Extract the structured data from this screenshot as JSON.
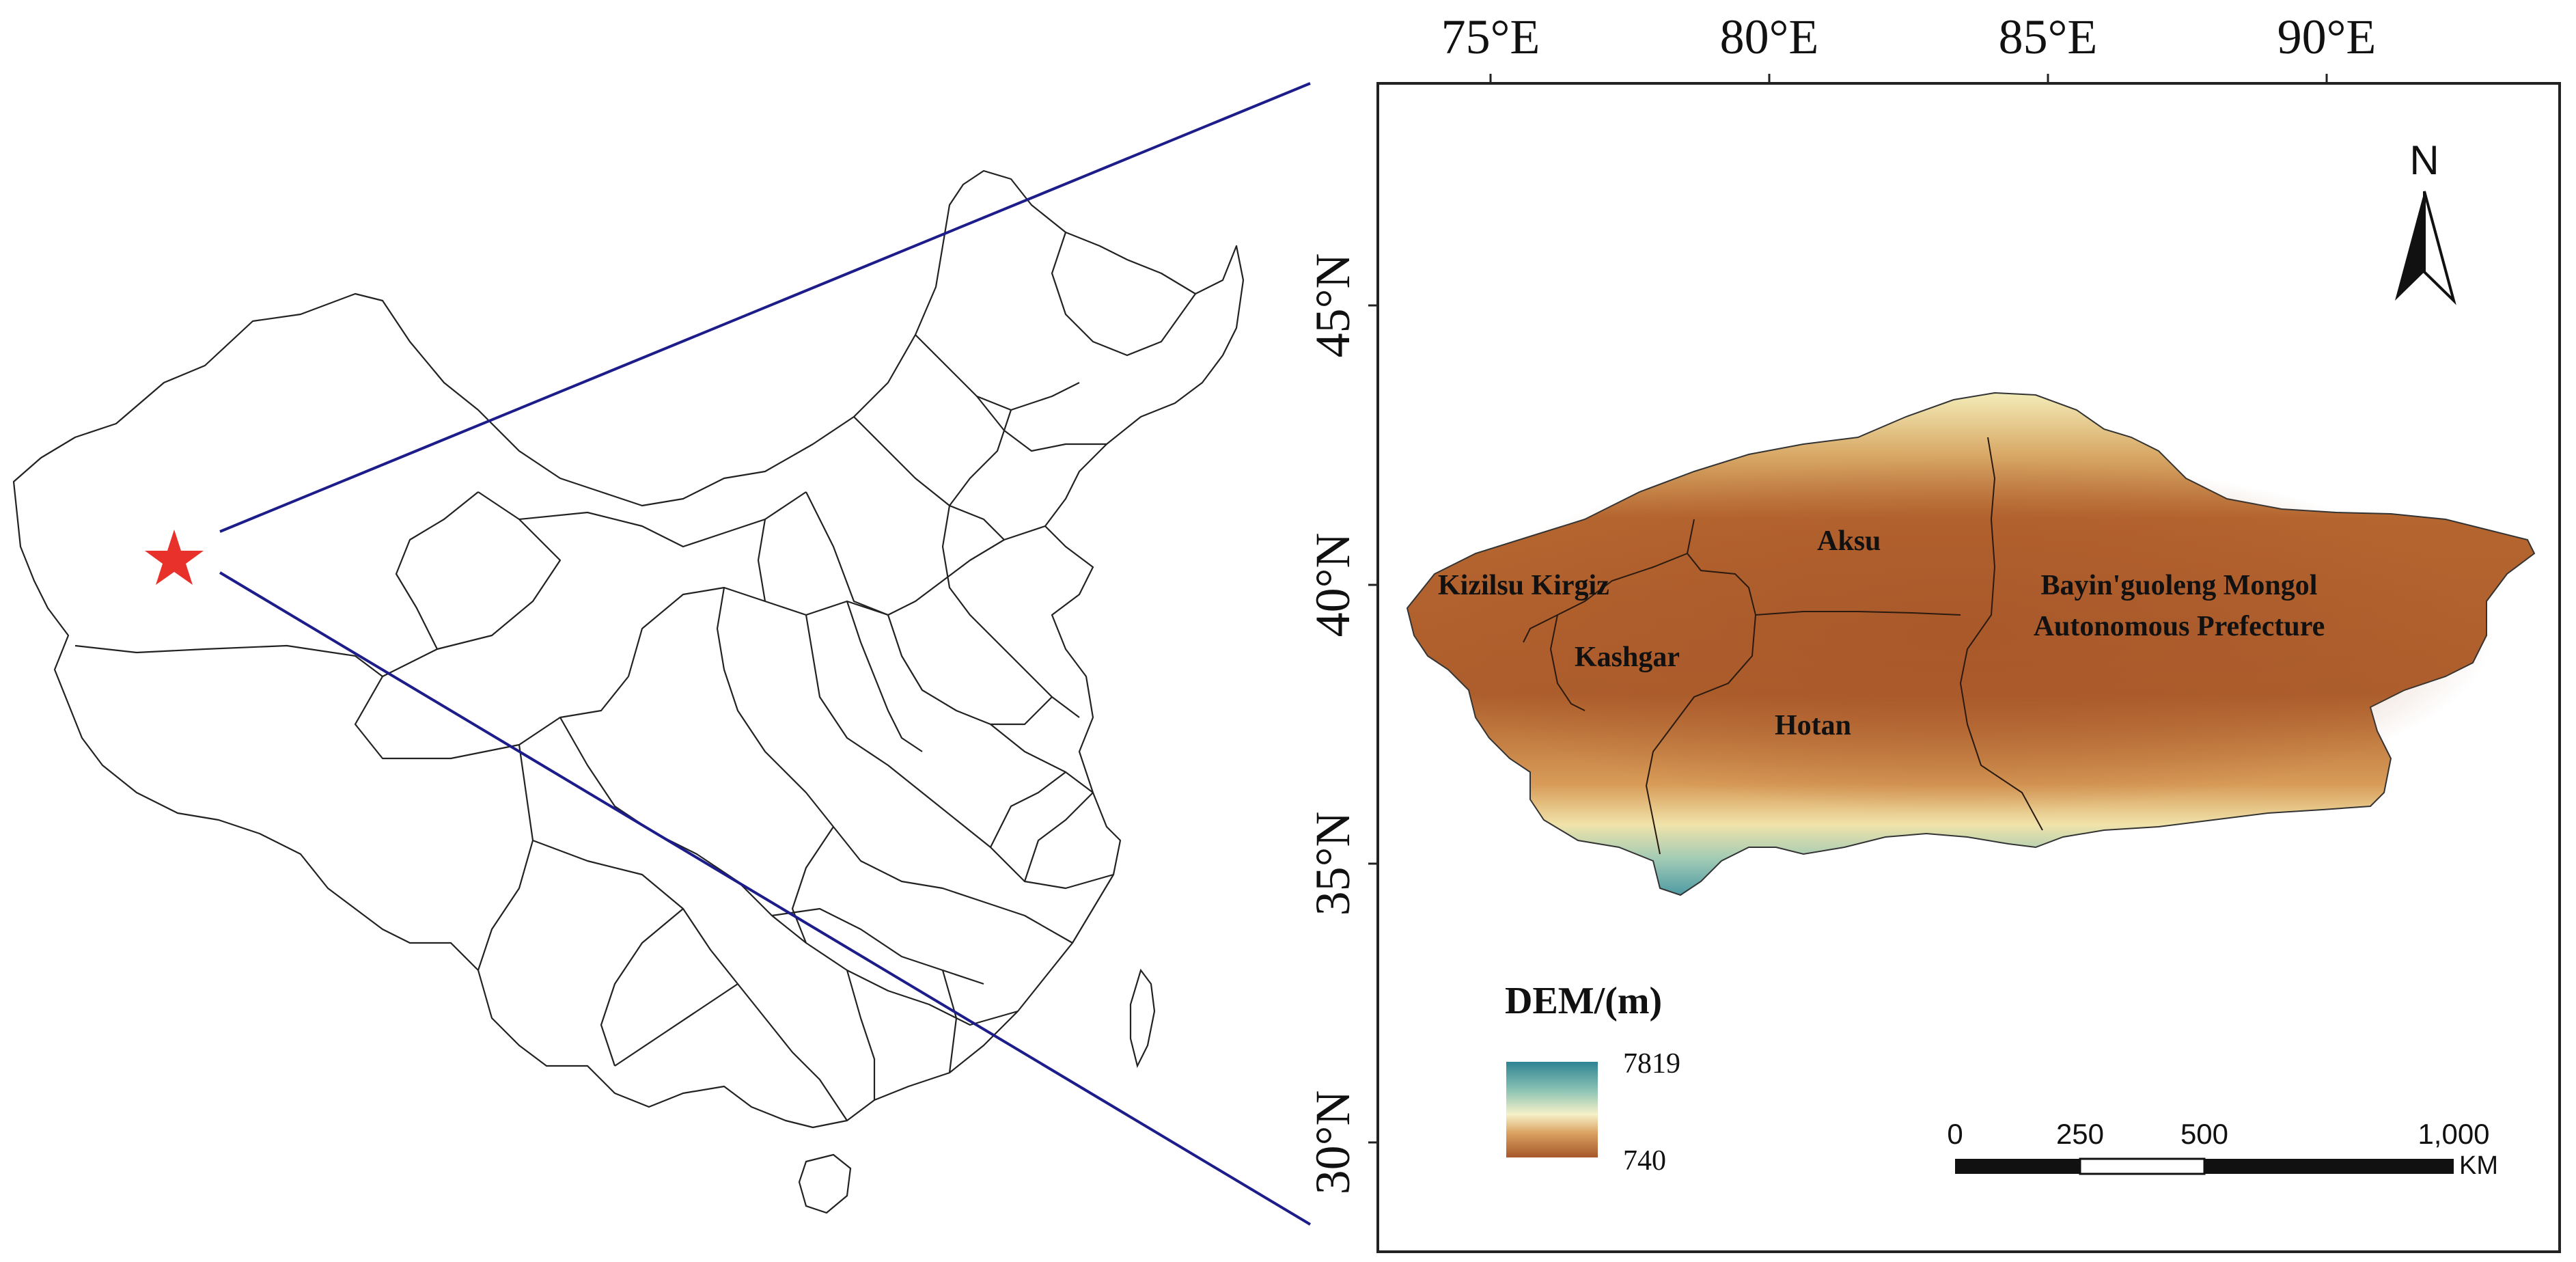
{
  "overview_map": {
    "marker_color": "#e8312a",
    "boundary_color": "#222222",
    "callout_line_color": "#1c1c8a"
  },
  "detail_map": {
    "lon_labels": [
      "75°E",
      "80°E",
      "85°E",
      "90°E"
    ],
    "lat_labels": [
      "45°N",
      "40°N",
      "35°N",
      "30°N"
    ],
    "north_arrow": {
      "label": "N",
      "icon": "north-arrow-icon"
    },
    "regions": [
      "Kizilsu Kirgiz",
      "Aksu",
      "Kashgar",
      "Hotan",
      "Bayin'guoleng Mongol",
      "Autonomous Prefecture"
    ],
    "legend": {
      "title": "DEM/(m)",
      "high_value": "7819",
      "low_value": "740",
      "high_color": "#3b8e9c",
      "mid_color": "#f5f0c4",
      "low_color": "#a7582b"
    },
    "scale_bar": {
      "ticks": [
        "0",
        "250",
        "500",
        "1,000"
      ],
      "unit": "KM"
    }
  }
}
